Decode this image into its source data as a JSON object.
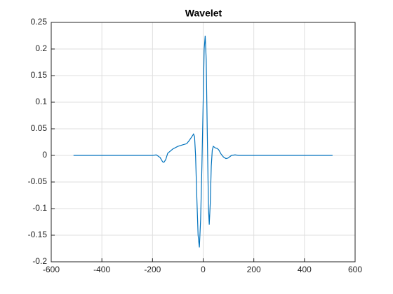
{
  "chart_data": {
    "type": "line",
    "title": "Wavelet",
    "x": [
      -512,
      -200,
      -185,
      -170,
      -160,
      -155,
      -148,
      -140,
      -120,
      -100,
      -80,
      -65,
      -55,
      -45,
      -38,
      -34,
      -30,
      -25,
      -20,
      -15,
      -10,
      -5,
      0,
      4,
      8,
      12,
      16,
      21,
      24,
      28,
      32,
      36,
      40,
      48,
      56,
      62,
      70,
      80,
      90,
      98,
      112,
      126,
      140,
      160,
      511
    ],
    "series": [
      {
        "name": "Wavelet",
        "color": "#0072bd",
        "values": [
          0,
          0,
          0.001,
          -0.004,
          -0.012,
          -0.013,
          -0.008,
          0.004,
          0.012,
          0.017,
          0.02,
          0.022,
          0.028,
          0.035,
          0.04,
          0.035,
          0.0,
          -0.08,
          -0.15,
          -0.173,
          -0.12,
          -0.02,
          0.1,
          0.2,
          0.225,
          0.18,
          0.05,
          -0.1,
          -0.13,
          -0.09,
          -0.02,
          0.01,
          0.017,
          0.014,
          0.013,
          0.01,
          0.003,
          -0.003,
          -0.006,
          -0.005,
          0.0,
          0.001,
          0,
          0,
          0
        ]
      }
    ],
    "xlim": [
      -600,
      600
    ],
    "xticks": [
      -600,
      -400,
      -200,
      0,
      200,
      400,
      600
    ],
    "ylim": [
      -0.2,
      0.25
    ],
    "yticks": [
      -0.2,
      -0.15,
      -0.1,
      -0.05,
      0,
      0.05,
      0.1,
      0.15,
      0.2,
      0.25
    ],
    "grid": true
  }
}
